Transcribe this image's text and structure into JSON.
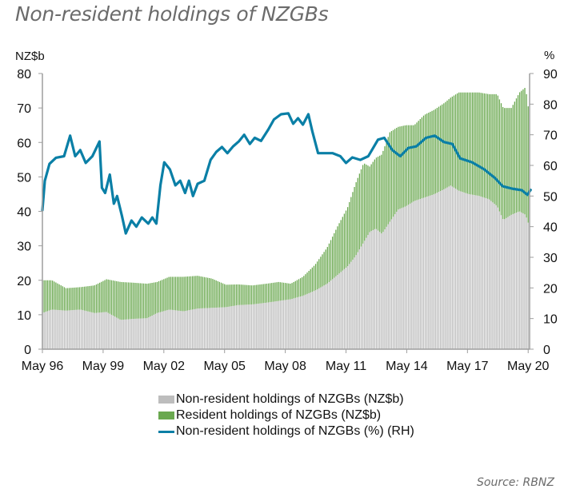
{
  "title": "Non-resident holdings of NZGBs",
  "source": "Source: RBNZ",
  "chart_data": {
    "type": "bar",
    "subtype": "stacked bar with line on secondary axis",
    "title": "Non-resident holdings of NZGBs",
    "left_axis": {
      "label": "NZ$b",
      "ylim": [
        0,
        80
      ],
      "ticks": [
        0,
        10,
        20,
        30,
        40,
        50,
        60,
        70,
        80
      ]
    },
    "right_axis": {
      "label": "%",
      "ylim": [
        0,
        90
      ],
      "ticks": [
        0,
        10,
        20,
        30,
        40,
        50,
        60,
        70,
        80,
        90
      ]
    },
    "x_axis": {
      "range": [
        1996.33,
        2020.4
      ],
      "tick_labels": [
        "May 96",
        "May 99",
        "May 02",
        "May 05",
        "May 08",
        "May 11",
        "May 14",
        "May 17",
        "May 20"
      ],
      "tick_values": [
        1996.33,
        1999.33,
        2002.33,
        2005.33,
        2008.33,
        2011.33,
        2014.33,
        2017.33,
        2020.33
      ]
    },
    "grid": false,
    "legend_position": "bottom",
    "colors": {
      "non_resident": "#bdbdbd",
      "resident": "#6aa84f",
      "pct_line": "#0a7fa6",
      "axis": "#9e9e9e"
    },
    "series": [
      {
        "name": "Non-resident holdings of NZGBs (NZ$b)",
        "type": "bar-stack",
        "axis": "left",
        "points": [
          [
            1996.33,
            10.5
          ],
          [
            1996.8,
            11.5
          ],
          [
            1997.5,
            11.2
          ],
          [
            1998.2,
            11.5
          ],
          [
            1998.9,
            10.5
          ],
          [
            1999.5,
            10.8
          ],
          [
            2000.2,
            8.5
          ],
          [
            2000.8,
            8.8
          ],
          [
            2001.5,
            9.0
          ],
          [
            2002.0,
            10.5
          ],
          [
            2002.6,
            11.5
          ],
          [
            2003.3,
            11.0
          ],
          [
            2004.0,
            11.8
          ],
          [
            2004.7,
            12.0
          ],
          [
            2005.4,
            12.2
          ],
          [
            2006.0,
            12.8
          ],
          [
            2006.7,
            13.0
          ],
          [
            2007.4,
            13.5
          ],
          [
            2008.0,
            14.0
          ],
          [
            2008.6,
            14.5
          ],
          [
            2009.2,
            15.5
          ],
          [
            2009.8,
            17.0
          ],
          [
            2010.4,
            19.0
          ],
          [
            2010.9,
            21.5
          ],
          [
            2011.4,
            24.0
          ],
          [
            2011.8,
            27.0
          ],
          [
            2012.2,
            31.0
          ],
          [
            2012.5,
            34.0
          ],
          [
            2012.8,
            35.0
          ],
          [
            2013.1,
            33.5
          ],
          [
            2013.5,
            37.0
          ],
          [
            2013.9,
            40.5
          ],
          [
            2014.3,
            41.5
          ],
          [
            2014.7,
            43.0
          ],
          [
            2015.2,
            44.0
          ],
          [
            2015.7,
            45.0
          ],
          [
            2016.2,
            46.5
          ],
          [
            2016.5,
            47.5
          ],
          [
            2016.9,
            46.0
          ],
          [
            2017.4,
            45.0
          ],
          [
            2017.9,
            44.5
          ],
          [
            2018.4,
            43.5
          ],
          [
            2018.8,
            41.5
          ],
          [
            2019.1,
            37.5
          ],
          [
            2019.5,
            39.0
          ],
          [
            2019.9,
            40.0
          ],
          [
            2020.2,
            39.0
          ],
          [
            2020.4,
            35.5
          ]
        ]
      },
      {
        "name": "Resident holdings of NZGBs (NZ$b)",
        "type": "bar-stack",
        "axis": "left",
        "points": [
          [
            1996.33,
            9.5
          ],
          [
            1996.8,
            8.5
          ],
          [
            1997.5,
            6.5
          ],
          [
            1998.2,
            6.5
          ],
          [
            1998.9,
            8.0
          ],
          [
            1999.5,
            9.5
          ],
          [
            2000.2,
            11.0
          ],
          [
            2000.8,
            10.5
          ],
          [
            2001.5,
            10.0
          ],
          [
            2002.0,
            9.0
          ],
          [
            2002.6,
            9.5
          ],
          [
            2003.3,
            10.0
          ],
          [
            2004.0,
            9.5
          ],
          [
            2004.7,
            8.5
          ],
          [
            2005.4,
            6.5
          ],
          [
            2006.0,
            6.0
          ],
          [
            2006.7,
            5.5
          ],
          [
            2007.4,
            5.5
          ],
          [
            2008.0,
            5.5
          ],
          [
            2008.6,
            4.5
          ],
          [
            2009.2,
            5.5
          ],
          [
            2009.8,
            7.5
          ],
          [
            2010.4,
            10.5
          ],
          [
            2010.9,
            14.0
          ],
          [
            2011.4,
            17.0
          ],
          [
            2011.8,
            21.0
          ],
          [
            2012.2,
            23.0
          ],
          [
            2012.5,
            19.0
          ],
          [
            2012.8,
            20.5
          ],
          [
            2013.1,
            23.0
          ],
          [
            2013.5,
            26.0
          ],
          [
            2013.9,
            24.0
          ],
          [
            2014.3,
            23.5
          ],
          [
            2014.7,
            22.0
          ],
          [
            2015.2,
            24.0
          ],
          [
            2015.7,
            24.5
          ],
          [
            2016.2,
            25.0
          ],
          [
            2016.5,
            25.5
          ],
          [
            2016.9,
            28.5
          ],
          [
            2017.4,
            29.5
          ],
          [
            2017.9,
            30.0
          ],
          [
            2018.4,
            30.5
          ],
          [
            2018.8,
            32.5
          ],
          [
            2019.1,
            32.5
          ],
          [
            2019.5,
            31.0
          ],
          [
            2019.9,
            34.5
          ],
          [
            2020.2,
            37.0
          ],
          [
            2020.4,
            32.0
          ]
        ]
      },
      {
        "name": "Non-resident holdings of NZGBs (%) (RH)",
        "type": "line",
        "axis": "right",
        "points": [
          [
            1996.33,
            45.4
          ],
          [
            1996.45,
            55.0
          ],
          [
            1996.68,
            60.5
          ],
          [
            1997.0,
            62.5
          ],
          [
            1997.4,
            63.0
          ],
          [
            1997.7,
            69.7
          ],
          [
            1997.95,
            63.0
          ],
          [
            1998.2,
            65.0
          ],
          [
            1998.47,
            60.8
          ],
          [
            1998.8,
            63.0
          ],
          [
            1999.15,
            67.8
          ],
          [
            1999.27,
            52.7
          ],
          [
            1999.43,
            51.0
          ],
          [
            1999.66,
            57.0
          ],
          [
            1999.86,
            47.5
          ],
          [
            2000.02,
            50.0
          ],
          [
            2000.26,
            43.5
          ],
          [
            2000.45,
            37.8
          ],
          [
            2000.73,
            42.0
          ],
          [
            2000.97,
            40.0
          ],
          [
            2001.24,
            43.0
          ],
          [
            2001.56,
            41.0
          ],
          [
            2001.76,
            43.0
          ],
          [
            2001.96,
            41.0
          ],
          [
            2002.16,
            53.5
          ],
          [
            2002.35,
            61.0
          ],
          [
            2002.63,
            58.7
          ],
          [
            2002.9,
            53.5
          ],
          [
            2003.14,
            55.0
          ],
          [
            2003.38,
            51.0
          ],
          [
            2003.57,
            55.0
          ],
          [
            2003.77,
            50.0
          ],
          [
            2004.0,
            54.0
          ],
          [
            2004.33,
            55.0
          ],
          [
            2004.64,
            61.8
          ],
          [
            2004.92,
            64.4
          ],
          [
            2005.2,
            66.0
          ],
          [
            2005.47,
            64.0
          ],
          [
            2005.75,
            66.2
          ],
          [
            2006.03,
            67.8
          ],
          [
            2006.3,
            70.0
          ],
          [
            2006.58,
            67.0
          ],
          [
            2006.82,
            69.0
          ],
          [
            2007.13,
            68.0
          ],
          [
            2007.49,
            71.7
          ],
          [
            2007.77,
            75.0
          ],
          [
            2008.12,
            76.7
          ],
          [
            2008.48,
            77.0
          ],
          [
            2008.72,
            73.6
          ],
          [
            2008.96,
            75.4
          ],
          [
            2009.2,
            73.3
          ],
          [
            2009.47,
            76.7
          ],
          [
            2009.67,
            71.0
          ],
          [
            2009.95,
            64.0
          ],
          [
            2010.26,
            64.0
          ],
          [
            2010.66,
            64.0
          ],
          [
            2011.05,
            63.0
          ],
          [
            2011.33,
            60.8
          ],
          [
            2011.64,
            62.6
          ],
          [
            2012.04,
            61.8
          ],
          [
            2012.43,
            63.0
          ],
          [
            2012.67,
            65.7
          ],
          [
            2012.91,
            68.4
          ],
          [
            2013.22,
            69.0
          ],
          [
            2013.62,
            65.0
          ],
          [
            2014.01,
            63.0
          ],
          [
            2014.41,
            65.7
          ],
          [
            2014.8,
            66.2
          ],
          [
            2015.28,
            69.0
          ],
          [
            2015.71,
            69.7
          ],
          [
            2016.18,
            67.6
          ],
          [
            2016.58,
            67.0
          ],
          [
            2016.97,
            62.3
          ],
          [
            2017.56,
            61.0
          ],
          [
            2018.16,
            58.7
          ],
          [
            2018.67,
            56.0
          ],
          [
            2019.07,
            53.2
          ],
          [
            2019.54,
            52.4
          ],
          [
            2020.02,
            51.9
          ],
          [
            2020.29,
            50.4
          ],
          [
            2020.45,
            52.0
          ]
        ]
      }
    ]
  },
  "legend": [
    {
      "label": "Non-resident holdings of NZGBs (NZ$b)",
      "kind": "box",
      "color": "#bdbdbd"
    },
    {
      "label": "Resident holdings of NZGBs (NZ$b)",
      "kind": "box",
      "color": "#6aa84f"
    },
    {
      "label": "Non-resident holdings of NZGBs (%) (RH)",
      "kind": "line",
      "color": "#0a7fa6"
    }
  ]
}
